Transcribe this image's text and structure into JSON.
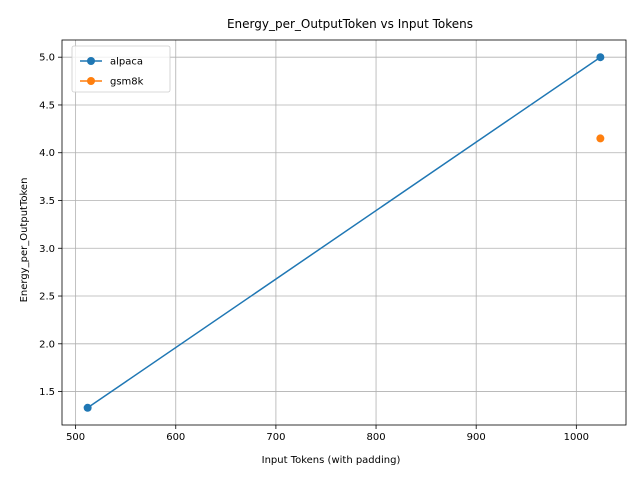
{
  "chart_data": {
    "type": "line",
    "title": "Energy_per_OutputToken vs Input Tokens",
    "xlabel": "Input Tokens (with padding)",
    "ylabel": "Energy_per_OutputToken",
    "xlim": [
      486.4,
      1049.6
    ],
    "ylim": [
      1.15,
      5.18
    ],
    "xticks": [
      500,
      600,
      700,
      800,
      900,
      1000
    ],
    "yticks": [
      1.5,
      2.0,
      2.5,
      3.0,
      3.5,
      4.0,
      4.5,
      5.0
    ],
    "xtick_labels": [
      "500",
      "600",
      "700",
      "800",
      "900",
      "1000"
    ],
    "ytick_labels": [
      "1.5",
      "2.0",
      "2.5",
      "3.0",
      "3.5",
      "4.0",
      "4.5",
      "5.0"
    ],
    "grid": true,
    "legend_position": "upper-left",
    "series": [
      {
        "name": "alpaca",
        "color": "#1f77b4",
        "x": [
          512,
          1024
        ],
        "y": [
          1.33,
          5.0
        ]
      },
      {
        "name": "gsm8k",
        "color": "#ff7f0e",
        "x": [
          1024
        ],
        "y": [
          4.15
        ]
      }
    ]
  }
}
